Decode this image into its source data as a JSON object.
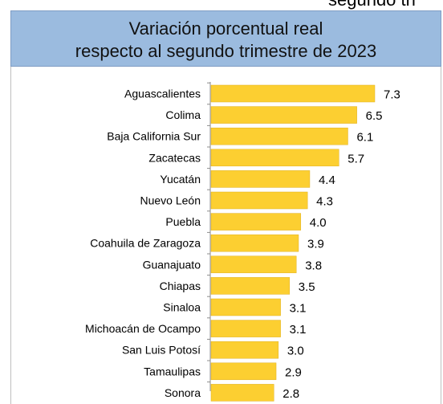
{
  "clipped_text": "segundo tri",
  "header": {
    "line1": "Variación porcentual real",
    "line2": "respecto al segundo trimestre de 2023"
  },
  "colors": {
    "bar": "#fccf31",
    "bar_edge": "#e0b020",
    "header_bg": "#9bbbdf"
  },
  "chart_data": {
    "type": "bar",
    "orientation": "horizontal",
    "title": "Variación porcentual real respecto al segundo trimestre de 2023",
    "categories": [
      "Aguascalientes",
      "Colima",
      "Baja California Sur",
      "Zacatecas",
      "Yucatán",
      "Nuevo León",
      "Puebla",
      "Coahuila de Zaragoza",
      "Guanajuato",
      "Chiapas",
      "Sinaloa",
      "Michoacán de Ocampo",
      "San Luis Potosí",
      "Tamaulipas",
      "Sonora"
    ],
    "values": [
      7.3,
      6.5,
      6.1,
      5.7,
      4.4,
      4.3,
      4.0,
      3.9,
      3.8,
      3.5,
      3.1,
      3.1,
      3.0,
      2.9,
      2.8
    ],
    "labels": [
      "7.3",
      "6.5",
      "6.1",
      "5.7",
      "4.4",
      "4.3",
      "4.0",
      "3.9",
      "3.8",
      "3.5",
      "3.1",
      "3.1",
      "3.0",
      "2.9",
      "2.8"
    ],
    "xlim": [
      0,
      7.3
    ],
    "grid": false,
    "legend": "none"
  }
}
